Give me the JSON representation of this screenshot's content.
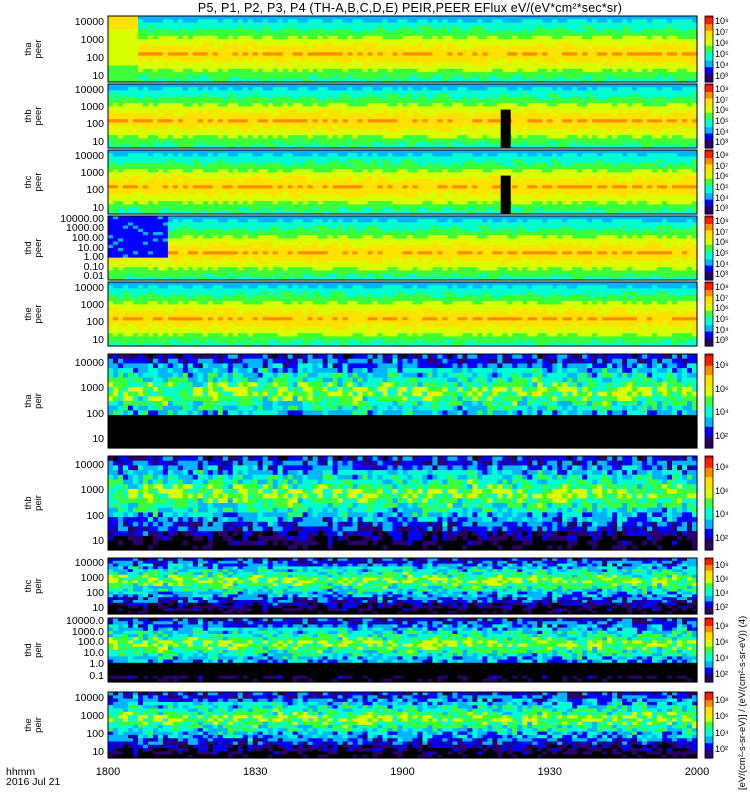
{
  "title": "P5, P1, P2, P3, P4 (TH-A,B,C,D,E) PEIR,PEER EFlux eV/(eV*cm²*sec*sr)",
  "x_axis": {
    "label_line1": "hhmm",
    "label_line2": "2016 Jul 21",
    "ticks": [
      "1800",
      "1830",
      "1900",
      "1930",
      "2000"
    ]
  },
  "right_unit_label": "[eV/(cm²-s-sr-eV)] / (eV/(cm²-s-sr-eV)) (4)",
  "colors": {
    "spectrum": [
      "#2a0068",
      "#0000ff",
      "#00b4ff",
      "#00ffd0",
      "#3cff3c",
      "#d7ff00",
      "#ffe100",
      "#ff8c00",
      "#ff1e00",
      "#d20000"
    ],
    "fill": "#000000",
    "gap_band": "#ff0000"
  },
  "colorbar_labels": {
    "peer": [
      "10⁸",
      "10⁷",
      "10⁶",
      "10⁵",
      "10⁴",
      "10³"
    ],
    "peir": [
      "10⁸",
      "10⁶",
      "10⁴",
      "10²"
    ]
  },
  "chart_data": {
    "type": "heatmap",
    "title": "P5, P1, P2, P3, P4 (TH-A,B,C,D,E) PEIR,PEER EFlux eV/(eV*cm²*sec*sr)",
    "xlabel": "hhmm  2016 Jul 21",
    "xlim_minutes_after_1800": [
      0,
      120
    ],
    "z_quantity": "Energy flux eV/(eV*cm²*sec*sr)",
    "panels": [
      {
        "probe": "tha",
        "product": "peer",
        "yticks": [
          "10000",
          "1000",
          "100",
          "10"
        ],
        "z_labels": "peer",
        "log_flux_range": [
          3,
          8
        ]
      },
      {
        "probe": "thb",
        "product": "peer",
        "yticks": [
          "10000",
          "1000",
          "100",
          "10"
        ],
        "z_labels": "peer",
        "log_flux_range": [
          3,
          8
        ]
      },
      {
        "probe": "thc",
        "product": "peer",
        "yticks": [
          "10000",
          "1000",
          "100",
          "10"
        ],
        "z_labels": "peer",
        "log_flux_range": [
          3,
          8
        ]
      },
      {
        "probe": "thd",
        "product": "peer",
        "yticks": [
          "10000.00",
          "1000.00",
          "100.00",
          "10.00",
          "1.00",
          "0.10",
          "0.01"
        ],
        "z_labels": "peer",
        "log_flux_range": [
          3,
          8
        ]
      },
      {
        "probe": "the",
        "product": "peer",
        "yticks": [
          "10000",
          "1000",
          "100",
          "10"
        ],
        "z_labels": "peer",
        "log_flux_range": [
          3,
          8
        ]
      },
      {
        "probe": "tha",
        "product": "peir",
        "yticks": [
          "10000",
          "1000",
          "100",
          "10"
        ],
        "z_labels": "peir",
        "log_flux_range": [
          2,
          8
        ]
      },
      {
        "probe": "thb",
        "product": "peir",
        "yticks": [
          "10000",
          "1000",
          "100",
          "10"
        ],
        "z_labels": "peir",
        "log_flux_range": [
          2,
          8
        ]
      },
      {
        "probe": "thc",
        "product": "peir",
        "yticks": [
          "10000",
          "1000",
          "100",
          "10"
        ],
        "z_labels": "peir",
        "log_flux_range": [
          2,
          8
        ]
      },
      {
        "probe": "thd",
        "product": "peir",
        "yticks": [
          "10000.0",
          "1000.0",
          "100.0",
          "10.0",
          "1.0",
          "0.1"
        ],
        "z_labels": "peir",
        "log_flux_range": [
          2,
          8
        ]
      },
      {
        "probe": "the",
        "product": "peir",
        "yticks": [
          "10000",
          "1000",
          "100",
          "10"
        ],
        "z_labels": "peir",
        "log_flux_range": [
          2,
          8
        ]
      }
    ]
  }
}
